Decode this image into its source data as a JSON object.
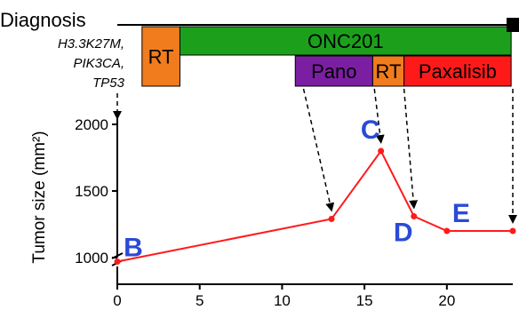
{
  "diagnosis": {
    "title": "Diagnosis",
    "mutations": [
      "H3.3K27M,",
      "PIK3CA,",
      "TP53"
    ]
  },
  "timeline_bars": [
    {
      "label": "RT",
      "start": 1.5,
      "end": 3.8,
      "row": "full",
      "color": "#f07c1e"
    },
    {
      "label": "ONC201",
      "start": 3.8,
      "end": 23.9,
      "row": "top",
      "color": "#1ca01c"
    },
    {
      "label": "Pano",
      "start": 10.8,
      "end": 15.5,
      "row": "bottom",
      "color": "#7b1fa2"
    },
    {
      "label": "RT",
      "start": 15.5,
      "end": 17.4,
      "row": "bottom",
      "color": "#f07c1e"
    },
    {
      "label": "Paxalisib",
      "start": 17.4,
      "end": 23.9,
      "row": "bottom",
      "color": "#ff1a1a"
    }
  ],
  "end_marker": {
    "x": 24,
    "color": "#000000"
  },
  "chart_data": {
    "type": "line",
    "xlabel": "",
    "ylabel": "Tumor size (mm²)",
    "xlim": [
      0,
      24
    ],
    "ylim": [
      800,
      2100
    ],
    "x_ticks": [
      0,
      5,
      10,
      15,
      20
    ],
    "y_ticks": [
      1000,
      1500,
      2000
    ],
    "axis_break": true,
    "series": [
      {
        "color": "#ff1a1a",
        "x": [
          0,
          13,
          16,
          18,
          20,
          24
        ],
        "y": [
          970,
          1290,
          1800,
          1310,
          1200,
          1200
        ]
      }
    ],
    "point_labels": [
      {
        "label": "B",
        "x": 0
      },
      {
        "label": "C",
        "x": 16
      },
      {
        "label": "D",
        "x": 18
      },
      {
        "label": "E",
        "x": 20
      }
    ],
    "dashed_arrows": [
      {
        "from_x": 0,
        "to_x": 0
      },
      {
        "from_x": 11.3,
        "to_x": 13
      },
      {
        "from_x": 15.6,
        "to_x": 16
      },
      {
        "from_x": 17.4,
        "to_x": 18
      },
      {
        "from_x": 24,
        "to_x": 24
      }
    ]
  }
}
